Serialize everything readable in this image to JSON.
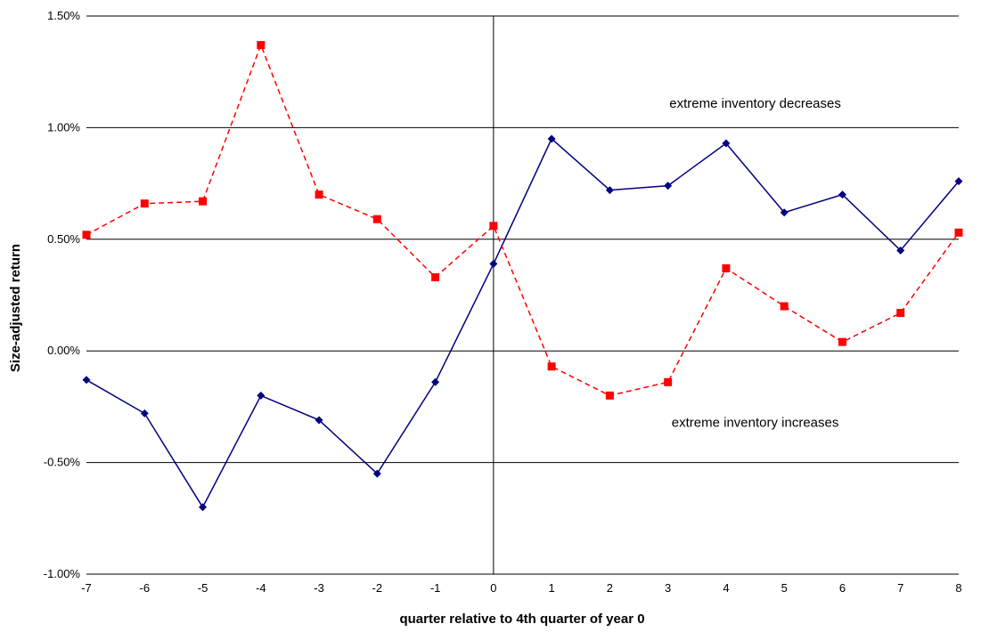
{
  "chart_data": {
    "type": "line",
    "title": "",
    "xlabel": "quarter relative to 4th quarter of year 0",
    "ylabel": "Size-adjusted return",
    "x": [
      -7,
      -6,
      -5,
      -4,
      -3,
      -2,
      -1,
      0,
      1,
      2,
      3,
      4,
      5,
      6,
      7,
      8
    ],
    "xlim": [
      -7,
      8
    ],
    "ylim": [
      -1.0,
      1.5
    ],
    "yticks": [
      -1.0,
      -0.5,
      0.0,
      0.5,
      1.0,
      1.5
    ],
    "ytick_labels": [
      "-1.00%",
      "-0.50%",
      "0.00%",
      "0.50%",
      "1.00%",
      "1.50%"
    ],
    "xtick_labels": [
      "-7",
      "-6",
      "-5",
      "-4",
      "-3",
      "-2",
      "-1",
      "0",
      "1",
      "2",
      "3",
      "4",
      "5",
      "6",
      "7",
      "8"
    ],
    "grid": "horizontal",
    "series": [
      {
        "color": "#000080",
        "line_style": "solid",
        "marker": "diamond",
        "values": [
          -0.13,
          -0.28,
          -0.7,
          -0.2,
          -0.31,
          -0.55,
          -0.14,
          0.39,
          0.95,
          0.72,
          0.74,
          0.93,
          0.62,
          0.7,
          0.45,
          0.76
        ]
      },
      {
        "color": "#ff0000",
        "line_style": "dashed",
        "marker": "square",
        "values": [
          0.52,
          0.66,
          0.67,
          1.37,
          0.7,
          0.59,
          0.33,
          0.56,
          -0.07,
          -0.2,
          -0.14,
          0.37,
          0.2,
          0.04,
          0.17,
          0.53
        ]
      }
    ],
    "annotations": [
      {
        "text": "extreme inventory decreases",
        "x": 4.5,
        "y": 1.11
      },
      {
        "text": "extreme inventory increases",
        "x": 4.5,
        "y": -0.32
      }
    ]
  }
}
